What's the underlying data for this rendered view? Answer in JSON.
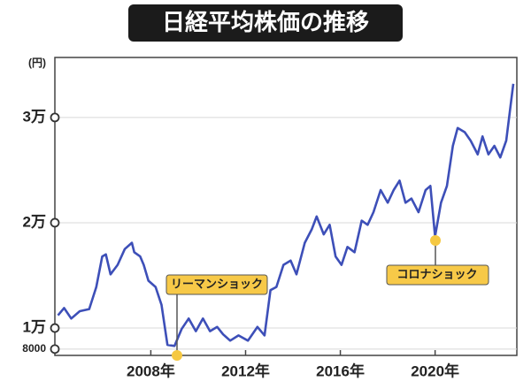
{
  "chart_data": {
    "type": "line",
    "title": "日経平均株価の推移",
    "y_unit": "(円)",
    "annotations": [
      "リーマンショック",
      "コロナショック"
    ],
    "x": [
      2004.08,
      2004.34,
      2004.64,
      2005.0,
      2005.4,
      2005.7,
      2005.95,
      2006.1,
      2006.3,
      2006.6,
      2006.9,
      2007.2,
      2007.3,
      2007.55,
      2007.7,
      2007.9,
      2008.2,
      2008.45,
      2008.7,
      2009.0,
      2009.3,
      2009.6,
      2009.9,
      2010.2,
      2010.5,
      2010.8,
      2011.05,
      2011.35,
      2011.7,
      2012.1,
      2012.5,
      2012.8,
      2013.05,
      2013.3,
      2013.6,
      2013.9,
      2014.15,
      2014.5,
      2014.8,
      2015.0,
      2015.3,
      2015.55,
      2015.8,
      2016.05,
      2016.3,
      2016.6,
      2016.9,
      2017.15,
      2017.4,
      2017.7,
      2018.0,
      2018.25,
      2018.5,
      2018.75,
      2019.0,
      2019.3,
      2019.6,
      2019.8,
      2020.0,
      2020.25,
      2020.5,
      2020.75,
      2020.95,
      2021.25,
      2021.5,
      2021.8,
      2022.0,
      2022.25,
      2022.5,
      2022.75,
      2023.0,
      2023.3
    ],
    "values": [
      11200,
      11900,
      10900,
      11600,
      11800,
      13900,
      16800,
      17000,
      15100,
      16000,
      17500,
      18100,
      17200,
      16800,
      16000,
      14500,
      13900,
      12200,
      8400,
      8300,
      9900,
      10900,
      9700,
      10900,
      9700,
      10100,
      9400,
      8800,
      9300,
      8800,
      10100,
      9300,
      13600,
      13900,
      16000,
      16400,
      15100,
      18100,
      19400,
      20600,
      18900,
      19800,
      16800,
      16000,
      17700,
      17200,
      20200,
      19800,
      21000,
      23100,
      21900,
      23100,
      24000,
      21900,
      22300,
      21000,
      23100,
      23500,
      18700,
      21900,
      23500,
      27300,
      29000,
      28600,
      27800,
      26500,
      28200,
      26500,
      27300,
      26200,
      27800,
      33200
    ],
    "color": "#3d4fb8",
    "xlim": [
      2003.95,
      2023.45
    ],
    "xticks": [
      {
        "value": 2008,
        "label": "2008年"
      },
      {
        "value": 2012,
        "label": "2012年"
      },
      {
        "value": 2016,
        "label": "2016年"
      },
      {
        "value": 2020,
        "label": "2020年"
      }
    ],
    "ylim": [
      7400,
      35700
    ],
    "yticks": [
      8000,
      {
        "value": 10000,
        "label": "1万"
      },
      {
        "value": 20000,
        "label": "2万"
      },
      {
        "value": 30000,
        "label": "3万"
      }
    ],
    "grid": true
  }
}
